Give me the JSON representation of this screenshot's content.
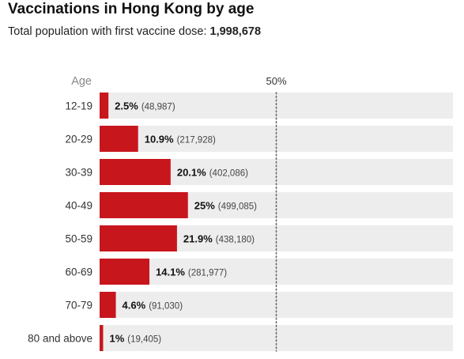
{
  "header": {
    "title": "Vaccinations in Hong Kong by age",
    "subtitle_prefix": "Total population with first vaccine dose: ",
    "subtitle_total": "1,998,678"
  },
  "colors": {
    "bar": "#c8161d",
    "track": "#ededed",
    "reference_line": "#666666",
    "label_muted": "#888888"
  },
  "chart_data": {
    "type": "bar",
    "orientation": "horizontal",
    "category_axis_label": "Age",
    "reference_label": "50%",
    "reference_value": 50,
    "xlim": [
      0,
      100
    ],
    "categories": [
      "12-19",
      "20-29",
      "30-39",
      "40-49",
      "50-59",
      "60-69",
      "70-79",
      "80 and above"
    ],
    "values": [
      2.5,
      10.9,
      20.1,
      25,
      21.9,
      14.1,
      4.6,
      1
    ],
    "value_labels": [
      "2.5%",
      "10.9%",
      "20.1%",
      "25%",
      "21.9%",
      "14.1%",
      "4.6%",
      "1%"
    ],
    "count_labels": [
      "(48,987)",
      "(217,928)",
      "(402,086)",
      "(499,085)",
      "(438,180)",
      "(281,977)",
      "(91,030)",
      "(19,405)"
    ]
  }
}
